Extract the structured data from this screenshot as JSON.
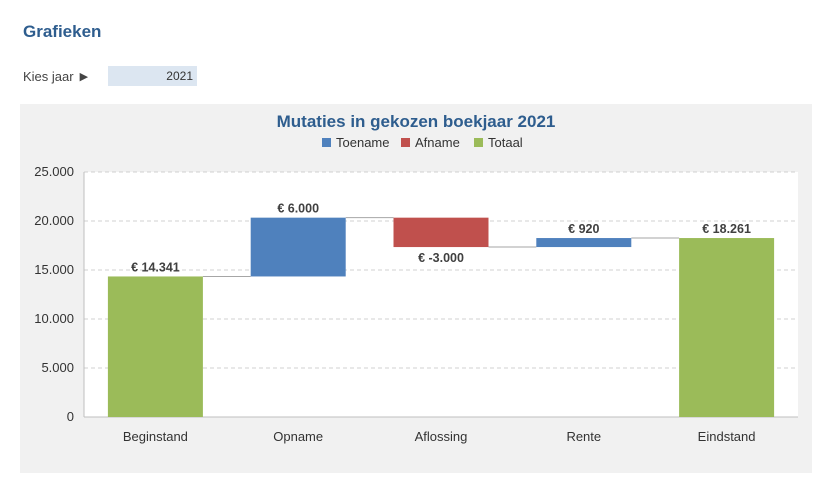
{
  "header": {
    "title": "Grafieken"
  },
  "year_selector": {
    "label": "Kies jaar",
    "value": "2021"
  },
  "chart_data": {
    "type": "bar",
    "subtype": "waterfall",
    "title": "Mutaties in gekozen boekjaar 2021",
    "legend": [
      {
        "name": "Toename",
        "color": "#4f81bd"
      },
      {
        "name": "Afname",
        "color": "#c0504d"
      },
      {
        "name": "Totaal",
        "color": "#9bbb59"
      }
    ],
    "legend_position": "top",
    "categories": [
      "Beginstand",
      "Opname",
      "Aflossing",
      "Rente",
      "Eindstand"
    ],
    "bars": [
      {
        "category": "Beginstand",
        "kind": "Totaal",
        "start": 0,
        "end": 14341,
        "label": "€ 14.341"
      },
      {
        "category": "Opname",
        "kind": "Toename",
        "start": 14341,
        "end": 20341,
        "label": "€ 6.000"
      },
      {
        "category": "Aflossing",
        "kind": "Afname",
        "start": 20341,
        "end": 17341,
        "label": "€ -3.000"
      },
      {
        "category": "Rente",
        "kind": "Toename",
        "start": 17341,
        "end": 18261,
        "label": "€ 920"
      },
      {
        "category": "Eindstand",
        "kind": "Totaal",
        "start": 0,
        "end": 18261,
        "label": "€ 18.261"
      }
    ],
    "y_ticks": [
      0,
      5000,
      10000,
      15000,
      20000,
      25000
    ],
    "y_tick_labels": [
      "0",
      "5.000",
      "10.000",
      "15.000",
      "20.000",
      "25.000"
    ],
    "ylim": [
      0,
      25000
    ],
    "grid": "horizontal dashed"
  }
}
